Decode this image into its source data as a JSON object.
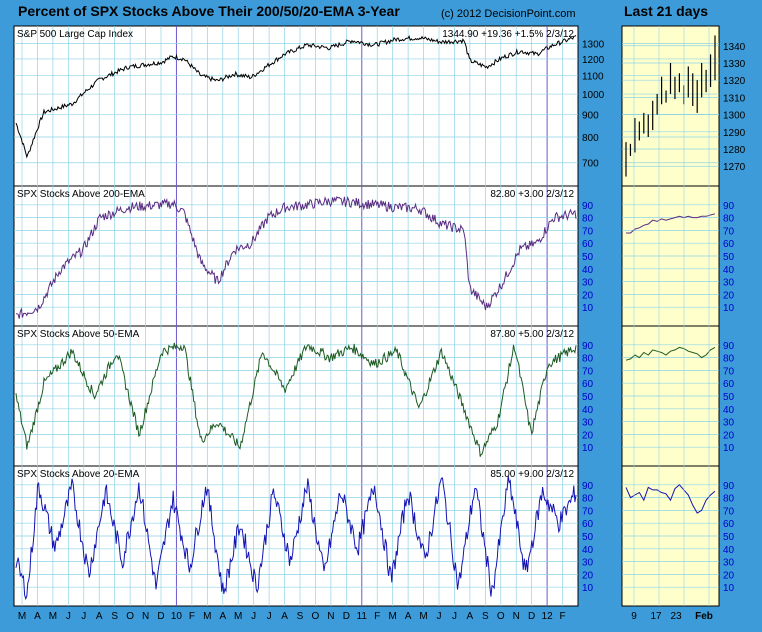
{
  "title_main": "Percent of SPX Stocks Above Their 200/50/20-EMA 3-Year",
  "copyright": "(c) 2012 DecisionPoint.com",
  "title_side": "Last 21 days",
  "colors": {
    "background": "#3c9bd8",
    "plot_bg": "#ffffff",
    "side_bg": "#ffffcc",
    "grid": "#8fd3e6",
    "spx": "#000000",
    "ema200": "#5a2d82",
    "ema50": "#1e5b23",
    "ema20": "#1414b4",
    "tick_text": "#0000cc"
  },
  "chart_data": [
    {
      "type": "line",
      "title": "S&P 500 Large Cap Index",
      "readout": "1344.90  +19.36  +1.5%   2/3/12",
      "y_scale": "log",
      "ylim": [
        640,
        1380
      ],
      "y_ticks": [
        700,
        800,
        900,
        1000,
        1100,
        1200,
        1300
      ],
      "series": [
        {
          "values": [
            [
              0,
              860
            ],
            [
              0.02,
              720
            ],
            [
              0.05,
              910
            ],
            [
              0.1,
              950
            ],
            [
              0.15,
              1080
            ],
            [
              0.2,
              1150
            ],
            [
              0.26,
              1180
            ],
            [
              0.28,
              1215
            ],
            [
              0.3,
              1200
            ],
            [
              0.33,
              1100
            ],
            [
              0.36,
              1070
            ],
            [
              0.39,
              1110
            ],
            [
              0.42,
              1090
            ],
            [
              0.45,
              1160
            ],
            [
              0.48,
              1230
            ],
            [
              0.52,
              1290
            ],
            [
              0.56,
              1270
            ],
            [
              0.6,
              1320
            ],
            [
              0.64,
              1290
            ],
            [
              0.68,
              1330
            ],
            [
              0.72,
              1340
            ],
            [
              0.76,
              1310
            ],
            [
              0.8,
              1320
            ],
            [
              0.81,
              1190
            ],
            [
              0.84,
              1150
            ],
            [
              0.87,
              1210
            ],
            [
              0.9,
              1250
            ],
            [
              0.93,
              1230
            ],
            [
              0.96,
              1290
            ],
            [
              1,
              1345
            ]
          ]
        }
      ]
    },
    {
      "type": "line",
      "title": "SPX Stocks Above 200-EMA",
      "readout": "82.80  +3.00   2/3/12",
      "ylim": [
        0,
        100
      ],
      "y_ticks": [
        10,
        20,
        30,
        40,
        50,
        60,
        70,
        80,
        90
      ],
      "series": [
        {
          "values": [
            [
              0,
              3
            ],
            [
              0.04,
              10
            ],
            [
              0.08,
              40
            ],
            [
              0.12,
              55
            ],
            [
              0.15,
              80
            ],
            [
              0.2,
              88
            ],
            [
              0.26,
              90
            ],
            [
              0.28,
              91
            ],
            [
              0.3,
              84
            ],
            [
              0.33,
              45
            ],
            [
              0.36,
              30
            ],
            [
              0.39,
              55
            ],
            [
              0.42,
              60
            ],
            [
              0.45,
              80
            ],
            [
              0.48,
              88
            ],
            [
              0.52,
              90
            ],
            [
              0.56,
              93
            ],
            [
              0.6,
              92
            ],
            [
              0.64,
              90
            ],
            [
              0.68,
              88
            ],
            [
              0.72,
              87
            ],
            [
              0.76,
              75
            ],
            [
              0.8,
              70
            ],
            [
              0.81,
              25
            ],
            [
              0.84,
              10
            ],
            [
              0.87,
              30
            ],
            [
              0.9,
              55
            ],
            [
              0.93,
              60
            ],
            [
              0.96,
              80
            ],
            [
              1,
              83
            ]
          ]
        }
      ]
    },
    {
      "type": "line",
      "title": "SPX Stocks Above 50-EMA",
      "readout": "87.80  +5.00   2/3/12",
      "ylim": [
        0,
        100
      ],
      "y_ticks": [
        10,
        20,
        30,
        40,
        50,
        60,
        70,
        80,
        90
      ],
      "series": [
        {
          "values": [
            [
              0,
              50
            ],
            [
              0.02,
              10
            ],
            [
              0.05,
              60
            ],
            [
              0.1,
              85
            ],
            [
              0.14,
              50
            ],
            [
              0.18,
              85
            ],
            [
              0.22,
              20
            ],
            [
              0.26,
              85
            ],
            [
              0.3,
              90
            ],
            [
              0.33,
              15
            ],
            [
              0.36,
              30
            ],
            [
              0.4,
              10
            ],
            [
              0.44,
              85
            ],
            [
              0.48,
              55
            ],
            [
              0.52,
              90
            ],
            [
              0.56,
              80
            ],
            [
              0.6,
              88
            ],
            [
              0.64,
              75
            ],
            [
              0.68,
              85
            ],
            [
              0.72,
              40
            ],
            [
              0.76,
              85
            ],
            [
              0.8,
              40
            ],
            [
              0.83,
              5
            ],
            [
              0.86,
              30
            ],
            [
              0.89,
              90
            ],
            [
              0.92,
              20
            ],
            [
              0.95,
              75
            ],
            [
              1,
              88
            ]
          ]
        }
      ]
    },
    {
      "type": "line",
      "title": "SPX Stocks Above 20-EMA",
      "readout": "85.00  +9.00   2/3/12",
      "ylim": [
        0,
        100
      ],
      "y_ticks": [
        10,
        20,
        30,
        40,
        50,
        60,
        70,
        80,
        90
      ],
      "series": [
        {
          "values": [
            [
              0,
              30
            ],
            [
              0.02,
              5
            ],
            [
              0.04,
              90
            ],
            [
              0.07,
              40
            ],
            [
              0.1,
              88
            ],
            [
              0.13,
              20
            ],
            [
              0.16,
              85
            ],
            [
              0.19,
              30
            ],
            [
              0.22,
              90
            ],
            [
              0.25,
              10
            ],
            [
              0.28,
              80
            ],
            [
              0.31,
              25
            ],
            [
              0.34,
              90
            ],
            [
              0.37,
              5
            ],
            [
              0.4,
              60
            ],
            [
              0.43,
              10
            ],
            [
              0.46,
              85
            ],
            [
              0.49,
              30
            ],
            [
              0.52,
              90
            ],
            [
              0.55,
              20
            ],
            [
              0.58,
              85
            ],
            [
              0.61,
              40
            ],
            [
              0.64,
              90
            ],
            [
              0.67,
              15
            ],
            [
              0.7,
              85
            ],
            [
              0.73,
              30
            ],
            [
              0.76,
              95
            ],
            [
              0.79,
              10
            ],
            [
              0.82,
              90
            ],
            [
              0.85,
              5
            ],
            [
              0.88,
              95
            ],
            [
              0.91,
              20
            ],
            [
              0.94,
              85
            ],
            [
              0.97,
              60
            ],
            [
              1,
              85
            ]
          ]
        }
      ]
    }
  ],
  "x_axis_main": [
    "M",
    "A",
    "M",
    "J",
    "J",
    "A",
    "S",
    "O",
    "N",
    "D",
    "10",
    "F",
    "M",
    "A",
    "M",
    "J",
    "J",
    "A",
    "S",
    "O",
    "N",
    "D",
    "11",
    "F",
    "M",
    "A",
    "M",
    "J",
    "J",
    "A",
    "S",
    "O",
    "N",
    "D",
    "12",
    "F"
  ],
  "x_axis_side": [
    "9",
    "17",
    "23",
    "Feb"
  ],
  "side_chart_data": [
    {
      "type": "bar",
      "ylim": [
        1262,
        1348
      ],
      "y_ticks": [
        1270,
        1280,
        1290,
        1300,
        1310,
        1320,
        1330,
        1340
      ],
      "bars": [
        [
          1264,
          1284
        ],
        [
          1276,
          1283
        ],
        [
          1278,
          1298
        ],
        [
          1285,
          1296
        ],
        [
          1289,
          1301
        ],
        [
          1287,
          1300
        ],
        [
          1291,
          1308
        ],
        [
          1300,
          1312
        ],
        [
          1306,
          1322
        ],
        [
          1307,
          1314
        ],
        [
          1312,
          1330
        ],
        [
          1309,
          1322
        ],
        [
          1313,
          1324
        ],
        [
          1306,
          1317
        ],
        [
          1310,
          1328
        ],
        [
          1305,
          1324
        ],
        [
          1301,
          1320
        ],
        [
          1310,
          1330
        ],
        [
          1313,
          1326
        ],
        [
          1316,
          1335
        ],
        [
          1320,
          1346
        ]
      ]
    },
    {
      "type": "line",
      "ylim": [
        0,
        100
      ],
      "y_ticks": [
        10,
        20,
        30,
        40,
        50,
        60,
        70,
        80,
        90
      ],
      "values": [
        68,
        68,
        71,
        72,
        74,
        75,
        78,
        77,
        79,
        78,
        79,
        80,
        81,
        80,
        81,
        80,
        80,
        81,
        81,
        82,
        83
      ]
    },
    {
      "type": "line",
      "ylim": [
        0,
        100
      ],
      "y_ticks": [
        10,
        20,
        30,
        40,
        50,
        60,
        70,
        80,
        90
      ],
      "values": [
        78,
        79,
        82,
        80,
        84,
        82,
        86,
        85,
        84,
        82,
        85,
        86,
        88,
        87,
        85,
        84,
        83,
        80,
        82,
        86,
        88
      ]
    },
    {
      "type": "line",
      "ylim": [
        0,
        100
      ],
      "y_ticks": [
        10,
        20,
        30,
        40,
        50,
        60,
        70,
        80,
        90
      ],
      "values": [
        88,
        80,
        82,
        84,
        78,
        88,
        86,
        86,
        84,
        83,
        78,
        87,
        90,
        86,
        82,
        74,
        68,
        70,
        78,
        82,
        85
      ]
    }
  ]
}
